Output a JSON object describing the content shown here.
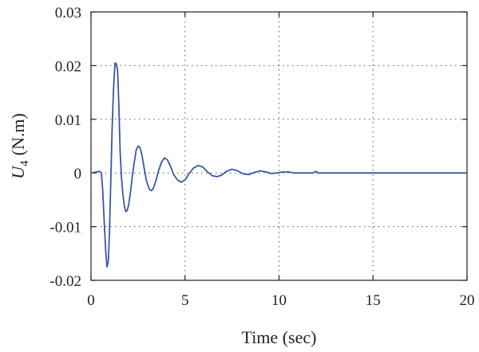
{
  "chart_data": {
    "type": "line",
    "title": "",
    "xlabel": "Time (sec)",
    "ylabel_symbol": "U",
    "ylabel_subscript": "4",
    "ylabel_unit": "(N.m)",
    "xlim": [
      0,
      20
    ],
    "ylim": [
      -0.02,
      0.03
    ],
    "x_ticks": [
      0,
      5,
      10,
      15,
      20
    ],
    "x_tick_labels": [
      "0",
      "5",
      "10",
      "15",
      "20"
    ],
    "y_ticks": [
      -0.02,
      -0.01,
      0,
      0.01,
      0.02,
      0.03
    ],
    "y_tick_labels": [
      "-0.02",
      "-0.01",
      "0",
      "0.01",
      "0.02",
      "0.03"
    ],
    "grid": "dotted",
    "color": "#3a57a8",
    "series": [
      {
        "x": [
          0,
          0.3,
          0.45,
          0.55,
          0.62,
          0.7,
          0.78,
          0.85,
          0.92,
          0.98,
          1.05,
          1.12,
          1.2,
          1.28,
          1.35,
          1.42,
          1.48,
          1.55,
          1.62,
          1.7,
          1.78,
          1.85,
          1.92,
          2.0,
          2.1,
          2.2,
          2.3,
          2.4,
          2.5,
          2.6,
          2.7,
          2.8,
          2.95,
          3.1,
          3.2,
          3.3,
          3.45,
          3.6,
          3.75,
          3.9,
          4.05,
          4.2,
          4.4,
          4.6,
          4.8,
          5.0,
          5.2,
          5.45,
          5.7,
          5.95,
          6.2,
          6.45,
          6.7,
          6.95,
          7.2,
          7.5,
          7.8,
          8.1,
          8.4,
          8.7,
          9.0,
          9.3,
          9.6,
          9.9,
          10.2,
          10.5,
          10.8,
          11.2,
          11.5,
          11.8,
          11.95,
          12.1,
          12.5,
          13.5,
          15,
          17.5,
          20
        ],
        "y": [
          0,
          0.0002,
          0.0003,
          0,
          -0.003,
          -0.009,
          -0.0145,
          -0.0175,
          -0.0165,
          -0.011,
          -0.002,
          0.008,
          0.016,
          0.0205,
          0.0203,
          0.019,
          0.0125,
          0.004,
          -0.001,
          -0.004,
          -0.0063,
          -0.0072,
          -0.007,
          -0.006,
          -0.0035,
          -0.0005,
          0.002,
          0.0042,
          0.005,
          0.0048,
          0.0035,
          0.0015,
          -0.0015,
          -0.003,
          -0.0033,
          -0.003,
          -0.0015,
          0.0005,
          0.002,
          0.0028,
          0.0025,
          0.0015,
          -0.0003,
          -0.0013,
          -0.0017,
          -0.0013,
          -0.0002,
          0.0009,
          0.0014,
          0.0011,
          0.0002,
          -0.0005,
          -0.0007,
          -0.0004,
          0.0003,
          0.0007,
          0.0004,
          -0.0002,
          -0.0003,
          0.0001,
          0.0004,
          0.0002,
          -0.0001,
          0,
          0.0002,
          0.0002,
          0,
          0,
          0,
          0,
          0.0003,
          0,
          0,
          0,
          0,
          0,
          0
        ]
      }
    ]
  }
}
